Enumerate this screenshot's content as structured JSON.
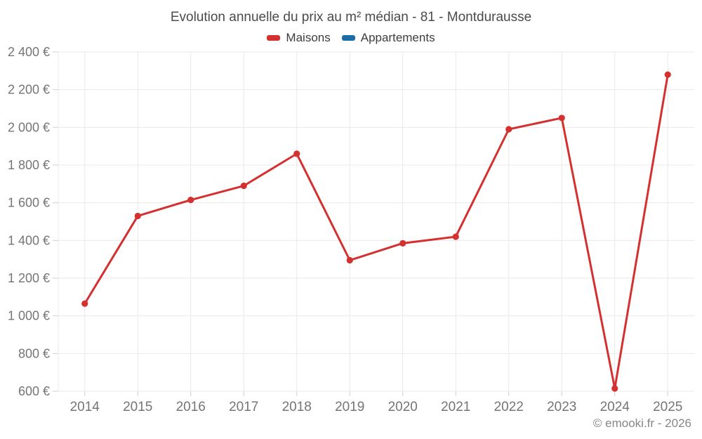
{
  "title": "Evolution annuelle du prix au m² médian - 81 - Montdurausse",
  "legend": {
    "items": [
      {
        "label": "Maisons",
        "color": "#d53030"
      },
      {
        "label": "Appartements",
        "color": "#1c6ca8"
      }
    ]
  },
  "footer": "© emooki.fr - 2026",
  "theme": {
    "grid_color": "#e9e9e9",
    "tick_color": "#cfcfcf",
    "axis_text_color": "#757575",
    "title_color": "#4b4b4b",
    "legend_text_color": "#3d3d3d",
    "footer_color": "#868686",
    "background": "#ffffff"
  },
  "chart_data": {
    "type": "line",
    "title": "Evolution annuelle du prix au m² médian - 81 - Montdurausse",
    "xlabel": "",
    "ylabel": "",
    "categories": [
      "2014",
      "2015",
      "2016",
      "2017",
      "2018",
      "2019",
      "2020",
      "2021",
      "2022",
      "2023",
      "2024",
      "2025"
    ],
    "series": [
      {
        "name": "Maisons",
        "color": "#d53030",
        "values": [
          1065,
          1530,
          1615,
          1690,
          1860,
          1295,
          1385,
          1420,
          1990,
          2050,
          615,
          2280
        ]
      },
      {
        "name": "Appartements",
        "color": "#1c6ca8",
        "values": []
      }
    ],
    "ylim": [
      600,
      2400
    ],
    "ytick_interval": 200,
    "ytick_labels": [
      "600 €",
      "800 €",
      "1 000 €",
      "1 200 €",
      "1 400 €",
      "1 600 €",
      "1 800 €",
      "2 000 €",
      "2 200 €",
      "2 400 €"
    ],
    "grid": true,
    "legend_position": "top",
    "marker": "circle"
  }
}
